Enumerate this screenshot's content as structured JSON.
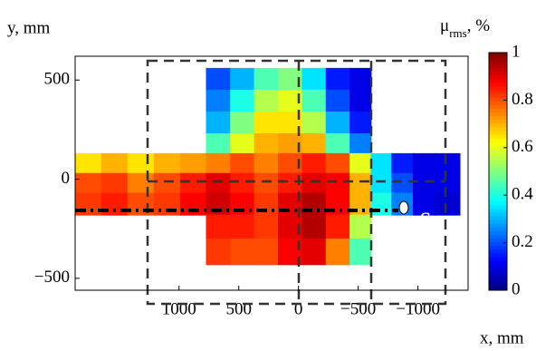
{
  "chart_data": {
    "type": "contour",
    "x_label": "x, mm",
    "y_label": "y, mm",
    "colorbar_label": {
      "symbol": "μ",
      "subscript": "rms",
      "unit": ", %"
    },
    "annotation": "S",
    "xlim": [
      1870,
      -1420
    ],
    "ylim": [
      -560,
      620
    ],
    "xticks": [
      1000,
      500,
      0,
      {
        "value": -500,
        "label": "−500"
      },
      {
        "value": -1000,
        "label": "−1000"
      }
    ],
    "yticks": [
      {
        "value": -500,
        "label": "−500"
      },
      0,
      500
    ],
    "clim": [
      0,
      1
    ],
    "cticks": [
      0,
      0.2,
      0.4,
      0.6,
      0.8,
      1
    ],
    "colormap": "jet",
    "x_edges": [
      1870,
      1650,
      1430,
      1210,
      990,
      773,
      570,
      370,
      170,
      -30,
      -230,
      -430,
      -606,
      -780,
      -960,
      -1140,
      -1350
    ],
    "y_edges": [
      560,
      450,
      340,
      230,
      130,
      30,
      -70,
      -180,
      -300,
      -430
    ],
    "z": [
      [
        null,
        null,
        null,
        null,
        null,
        0.2,
        0.3,
        0.45,
        0.5,
        0.35,
        0.15,
        0.1,
        null,
        null,
        null,
        null
      ],
      [
        null,
        null,
        null,
        null,
        null,
        0.25,
        0.4,
        0.55,
        0.6,
        0.45,
        0.2,
        0.1,
        null,
        null,
        null,
        null
      ],
      [
        null,
        null,
        null,
        null,
        null,
        0.3,
        0.5,
        0.65,
        0.65,
        0.55,
        0.3,
        0.15,
        null,
        null,
        null,
        null
      ],
      [
        null,
        null,
        null,
        null,
        null,
        0.45,
        0.6,
        0.7,
        0.72,
        0.7,
        0.45,
        0.25,
        null,
        null,
        null,
        null
      ],
      [
        0.65,
        0.7,
        0.65,
        0.7,
        0.72,
        0.75,
        0.8,
        0.75,
        0.8,
        0.85,
        0.8,
        0.6,
        0.35,
        0.15,
        0.1,
        0.1
      ],
      [
        0.8,
        0.82,
        0.75,
        0.8,
        0.85,
        0.9,
        0.85,
        0.8,
        0.85,
        0.9,
        0.88,
        0.7,
        0.35,
        0.2,
        0.1,
        0.1
      ],
      [
        0.82,
        0.85,
        0.8,
        0.82,
        0.88,
        0.92,
        0.88,
        0.82,
        0.9,
        0.95,
        0.88,
        0.7,
        0.4,
        0.25,
        0.1,
        0.08
      ],
      [
        null,
        null,
        null,
        null,
        null,
        0.85,
        0.85,
        0.82,
        0.9,
        0.95,
        0.85,
        0.55,
        null,
        null,
        null,
        null
      ],
      [
        null,
        null,
        null,
        null,
        null,
        0.82,
        0.8,
        0.8,
        0.88,
        0.9,
        0.75,
        0.45,
        null,
        null,
        null,
        null
      ]
    ]
  }
}
